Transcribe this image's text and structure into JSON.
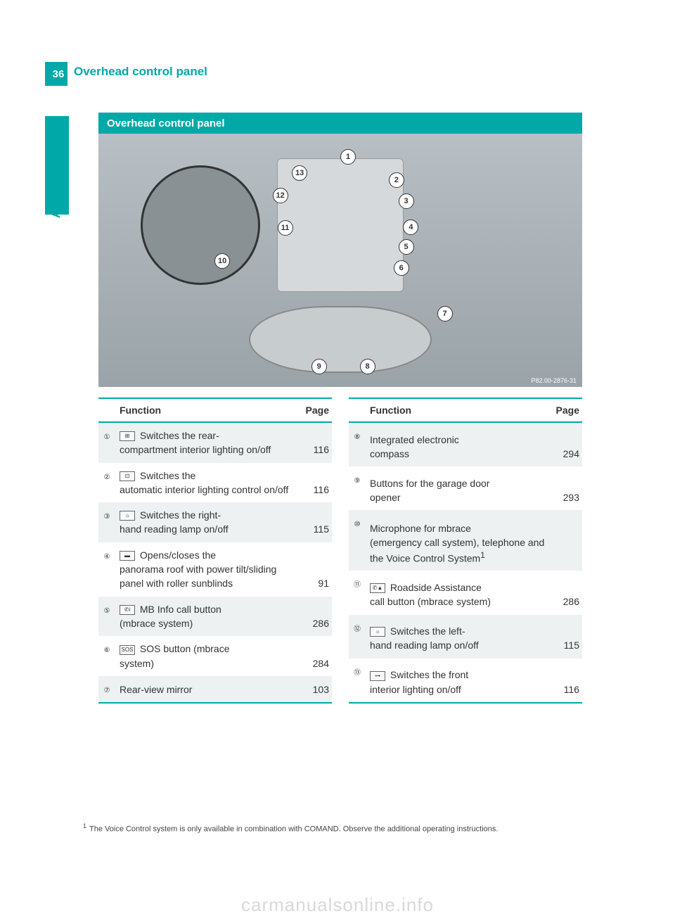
{
  "page": {
    "number": "36",
    "title": "Overhead control panel",
    "side_tab_label": "At a glance"
  },
  "section_header": "Overhead control panel",
  "figure": {
    "caption": "P82.00-2876-31",
    "callouts": [
      "1",
      "2",
      "3",
      "4",
      "5",
      "6",
      "7",
      "8",
      "9",
      "10",
      "11",
      "12",
      "13"
    ]
  },
  "table_headers": {
    "function": "Function",
    "page": "Page"
  },
  "left_rows": [
    {
      "num": "①",
      "icon": "⊞",
      "text_prefix": " Switches the rear-",
      "text_rest": "compartment interior lighting on/off",
      "page": "116"
    },
    {
      "num": "②",
      "icon": "⊡",
      "text_prefix": " Switches the",
      "text_rest": "automatic interior lighting control on/off",
      "page": "116"
    },
    {
      "num": "③",
      "icon": "☼",
      "text_prefix": " Switches the right-",
      "text_rest": "hand reading lamp on/off",
      "page": "115"
    },
    {
      "num": "④",
      "icon": "▬",
      "text_prefix": " Opens/closes the",
      "text_rest": "panorama roof with power tilt/sliding panel with roller sunblinds",
      "page": "91"
    },
    {
      "num": "⑤",
      "icon": "✆i",
      "text_prefix": " MB Info call button",
      "text_rest": "(mbrace system)",
      "page": "286"
    },
    {
      "num": "⑥",
      "icon": "SOS",
      "text_prefix": " SOS button (mbrace",
      "text_rest": "system)",
      "page": "284"
    },
    {
      "num": "⑦",
      "icon": "",
      "text_prefix": "Rear-view mirror",
      "text_rest": "",
      "page": "103"
    }
  ],
  "right_rows": [
    {
      "num": "⑧",
      "icon": "",
      "text_prefix": "Integrated electronic",
      "text_rest": "compass",
      "page": "294"
    },
    {
      "num": "⑨",
      "icon": "",
      "text_prefix": "Buttons for the garage door",
      "text_rest": "opener",
      "page": "293"
    },
    {
      "num": "⑩",
      "icon": "",
      "text_prefix": "Microphone for mbrace",
      "text_rest": "(emergency call system), telephone and the Voice Control System",
      "sup": "1",
      "page": ""
    },
    {
      "num": "⑪",
      "icon": "✆▲",
      "text_prefix": " Roadside Assistance",
      "text_rest": "call button (mbrace system)",
      "page": "286"
    },
    {
      "num": "⑫",
      "icon": "☼",
      "text_prefix": " Switches the left-",
      "text_rest": "hand reading lamp on/off",
      "page": "115"
    },
    {
      "num": "⑬",
      "icon": "⊶",
      "text_prefix": " Switches the front",
      "text_rest": "interior lighting on/off",
      "page": "116"
    }
  ],
  "footnote": {
    "marker": "1",
    "text": "The Voice Control system is only available in combination with COMAND. Observe the additional operating instructions."
  },
  "watermark": "carmanualsonline.info",
  "colors": {
    "accent": "#00a9a7",
    "row_alt": "#edf1f2"
  }
}
